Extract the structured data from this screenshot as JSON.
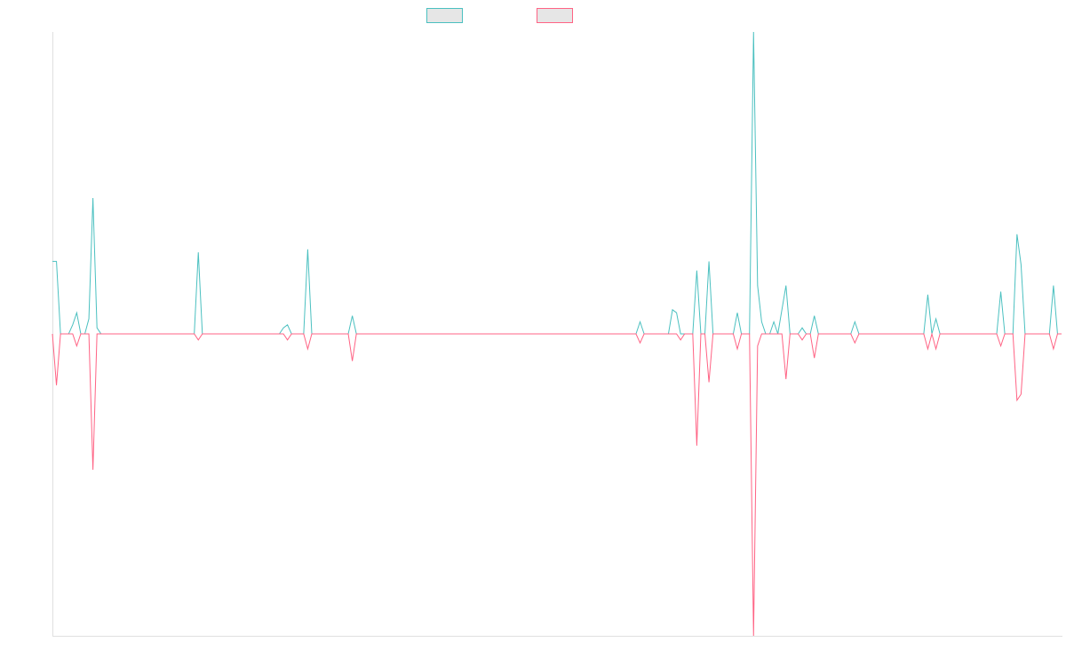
{
  "chart_data": {
    "type": "line",
    "ylim": [
      -100,
      100
    ],
    "series": [
      {
        "color": "#4bc0c0",
        "values": [
          24,
          24,
          0,
          0,
          0,
          3,
          7,
          0,
          0,
          5,
          45,
          2,
          0,
          0,
          0,
          0,
          0,
          0,
          0,
          0,
          0,
          0,
          0,
          0,
          0,
          0,
          0,
          0,
          0,
          0,
          0,
          0,
          0,
          0,
          0,
          0,
          27,
          0,
          0,
          0,
          0,
          0,
          0,
          0,
          0,
          0,
          0,
          0,
          0,
          0,
          0,
          0,
          0,
          0,
          0,
          0,
          0,
          2,
          3,
          0,
          0,
          0,
          0,
          28,
          0,
          0,
          0,
          0,
          0,
          0,
          0,
          0,
          0,
          0,
          6,
          0,
          0,
          0,
          0,
          0,
          0,
          0,
          0,
          0,
          0,
          0,
          0,
          0,
          0,
          0,
          0,
          0,
          0,
          0,
          0,
          0,
          0,
          0,
          0,
          0,
          0,
          0,
          0,
          0,
          0,
          0,
          0,
          0,
          0,
          0,
          0,
          0,
          0,
          0,
          0,
          0,
          0,
          0,
          0,
          0,
          0,
          0,
          0,
          0,
          0,
          0,
          0,
          0,
          0,
          0,
          0,
          0,
          0,
          0,
          0,
          0,
          0,
          0,
          0,
          0,
          0,
          0,
          0,
          0,
          0,
          4,
          0,
          0,
          0,
          0,
          0,
          0,
          0,
          8,
          7,
          0,
          0,
          0,
          0,
          21,
          0,
          0,
          24,
          0,
          0,
          0,
          0,
          0,
          0,
          7,
          0,
          0,
          0,
          100,
          16,
          4,
          0,
          0,
          4,
          0,
          8,
          16,
          0,
          0,
          0,
          2,
          0,
          0,
          6,
          0,
          0,
          0,
          0,
          0,
          0,
          0,
          0,
          0,
          4,
          0,
          0,
          0,
          0,
          0,
          0,
          0,
          0,
          0,
          0,
          0,
          0,
          0,
          0,
          0,
          0,
          0,
          13,
          0,
          5,
          0,
          0,
          0,
          0,
          0,
          0,
          0,
          0,
          0,
          0,
          0,
          0,
          0,
          0,
          0,
          14,
          0,
          0,
          0,
          33,
          23,
          0,
          0,
          0,
          0,
          0,
          0,
          0,
          16,
          0,
          0
        ]
      },
      {
        "color": "#ff6384",
        "values": [
          0,
          -17,
          0,
          0,
          0,
          0,
          -4,
          0,
          0,
          0,
          -45,
          0,
          0,
          0,
          0,
          0,
          0,
          0,
          0,
          0,
          0,
          0,
          0,
          0,
          0,
          0,
          0,
          0,
          0,
          0,
          0,
          0,
          0,
          0,
          0,
          0,
          -2,
          0,
          0,
          0,
          0,
          0,
          0,
          0,
          0,
          0,
          0,
          0,
          0,
          0,
          0,
          0,
          0,
          0,
          0,
          0,
          0,
          0,
          -2,
          0,
          0,
          0,
          0,
          -5,
          0,
          0,
          0,
          0,
          0,
          0,
          0,
          0,
          0,
          0,
          -9,
          0,
          0,
          0,
          0,
          0,
          0,
          0,
          0,
          0,
          0,
          0,
          0,
          0,
          0,
          0,
          0,
          0,
          0,
          0,
          0,
          0,
          0,
          0,
          0,
          0,
          0,
          0,
          0,
          0,
          0,
          0,
          0,
          0,
          0,
          0,
          0,
          0,
          0,
          0,
          0,
          0,
          0,
          0,
          0,
          0,
          0,
          0,
          0,
          0,
          0,
          0,
          0,
          0,
          0,
          0,
          0,
          0,
          0,
          0,
          0,
          0,
          0,
          0,
          0,
          0,
          0,
          0,
          0,
          0,
          0,
          -3,
          0,
          0,
          0,
          0,
          0,
          0,
          0,
          0,
          0,
          -2,
          0,
          0,
          0,
          -37,
          0,
          0,
          -16,
          0,
          0,
          0,
          0,
          0,
          0,
          -5,
          0,
          0,
          0,
          -100,
          -4,
          0,
          0,
          0,
          0,
          0,
          0,
          -15,
          0,
          0,
          0,
          -2,
          0,
          0,
          -8,
          0,
          0,
          0,
          0,
          0,
          0,
          0,
          0,
          0,
          -3,
          0,
          0,
          0,
          0,
          0,
          0,
          0,
          0,
          0,
          0,
          0,
          0,
          0,
          0,
          0,
          0,
          0,
          -5,
          0,
          -5,
          0,
          0,
          0,
          0,
          0,
          0,
          0,
          0,
          0,
          0,
          0,
          0,
          0,
          0,
          0,
          -4,
          0,
          0,
          0,
          -22,
          -20,
          0,
          0,
          0,
          0,
          0,
          0,
          0,
          -5,
          0,
          0
        ]
      }
    ]
  }
}
